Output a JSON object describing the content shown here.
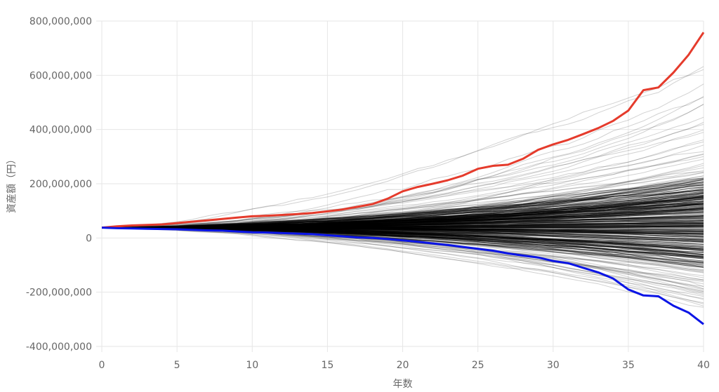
{
  "chart_data": {
    "type": "line",
    "xlabel": "年数",
    "ylabel": "資産額（円）",
    "xlim": [
      0,
      40
    ],
    "ylim": [
      -400000000,
      800000000
    ],
    "x_ticks": [
      0,
      5,
      10,
      15,
      20,
      25,
      30,
      35,
      40
    ],
    "x_tick_labels": [
      "0",
      "5",
      "10",
      "15",
      "20",
      "25",
      "30",
      "35",
      "40"
    ],
    "y_ticks": [
      -400000000,
      -200000000,
      0,
      200000000,
      400000000,
      600000000,
      800000000
    ],
    "y_tick_labels": [
      "-400,000,000",
      "-200,000,000",
      "0",
      "200,000,000",
      "400,000,000",
      "600,000,000",
      "800,000,000"
    ],
    "grid": true,
    "x": [
      0,
      1,
      2,
      3,
      4,
      5,
      6,
      7,
      8,
      9,
      10,
      11,
      12,
      13,
      14,
      15,
      16,
      17,
      18,
      19,
      20,
      21,
      22,
      23,
      24,
      25,
      26,
      27,
      28,
      29,
      30,
      31,
      32,
      33,
      34,
      35,
      36,
      37,
      38,
      39,
      40
    ],
    "series": [
      {
        "color": "#e53b2c",
        "values": [
          38000000,
          43000000,
          46000000,
          48000000,
          50000000,
          55000000,
          60000000,
          65000000,
          70000000,
          75000000,
          80000000,
          82000000,
          85000000,
          88000000,
          92000000,
          98000000,
          105000000,
          115000000,
          125000000,
          145000000,
          172000000,
          188000000,
          200000000,
          213000000,
          230000000,
          255000000,
          266000000,
          270000000,
          292000000,
          325000000,
          345000000,
          362000000,
          383000000,
          405000000,
          432000000,
          470000000,
          545000000,
          555000000,
          610000000,
          675000000,
          758000000
        ]
      },
      {
        "color": "#0a14e6",
        "values": [
          38000000,
          36000000,
          35000000,
          34000000,
          33000000,
          32000000,
          30000000,
          28000000,
          27000000,
          24000000,
          21000000,
          20000000,
          18000000,
          16000000,
          14000000,
          10000000,
          6000000,
          2000000,
          0,
          -4000000,
          -9000000,
          -14000000,
          -20000000,
          -26000000,
          -33000000,
          -40000000,
          -47000000,
          -57000000,
          -65000000,
          -72000000,
          -85000000,
          -93000000,
          -110000000,
          -127000000,
          -150000000,
          -190000000,
          -212000000,
          -215000000,
          -250000000,
          -275000000,
          -318000000
        ]
      }
    ],
    "simulation_paths": {
      "count": 300,
      "color": "#000000",
      "start": 38000000,
      "median_end": 55000000,
      "p90_end": 230000000,
      "p10_end": -120000000,
      "max_end": 680000000,
      "min_end": -260000000
    }
  }
}
